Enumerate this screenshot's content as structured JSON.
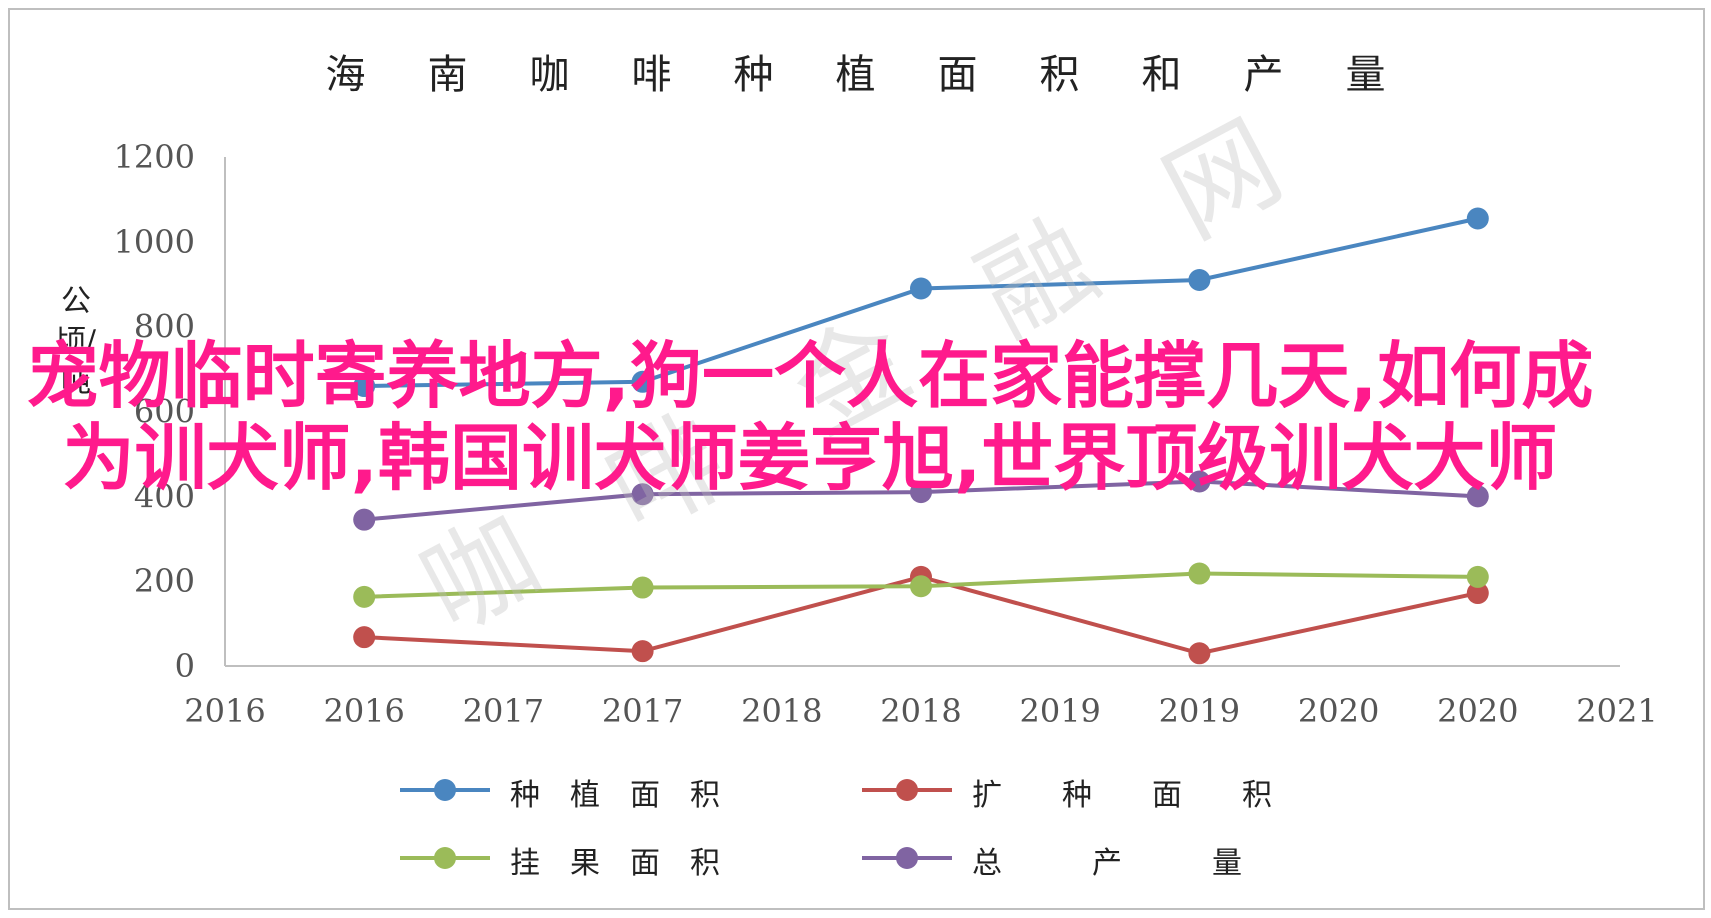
{
  "chart_data": {
    "type": "line",
    "title": "海南咖啡种植面积和产量",
    "xlabel": "",
    "ylabel": "公顷/吨",
    "ylim": [
      0,
      1200
    ],
    "yticks": [
      0,
      200,
      400,
      600,
      800,
      1000,
      1200
    ],
    "xtick_labels": [
      "2016",
      "2016",
      "2017",
      "2017",
      "2018",
      "2018",
      "2019",
      "2019",
      "2020",
      "2020",
      "2021"
    ],
    "x_points": [
      "2016",
      "2017",
      "2018",
      "2019",
      "2020"
    ],
    "grid": false,
    "legend_position": "bottom",
    "series": [
      {
        "name": "种植面积",
        "color": "#4a86c0",
        "values": [
          660,
          670,
          890,
          910,
          1055
        ]
      },
      {
        "name": "扩种面积",
        "color": "#c0504d",
        "values": [
          68,
          35,
          210,
          30,
          172
        ]
      },
      {
        "name": "挂果面积",
        "color": "#9bbb59",
        "values": [
          163,
          185,
          188,
          218,
          210
        ]
      },
      {
        "name": "总产量",
        "color": "#8064a2",
        "values": [
          345,
          405,
          410,
          435,
          400
        ]
      }
    ]
  },
  "legend": {
    "items": [
      "种　植　面　积",
      "扩　　种　　面　　积",
      "挂　果　面　积",
      "总　　　产　　　量"
    ]
  },
  "overlay_text": "宠物临时寄养地方,狗一个人在家能撑几天,如何成为训犬师,韩国训犬师姜亨旭,世界顶级训犬大师",
  "watermark_text": "咖啡金融网"
}
